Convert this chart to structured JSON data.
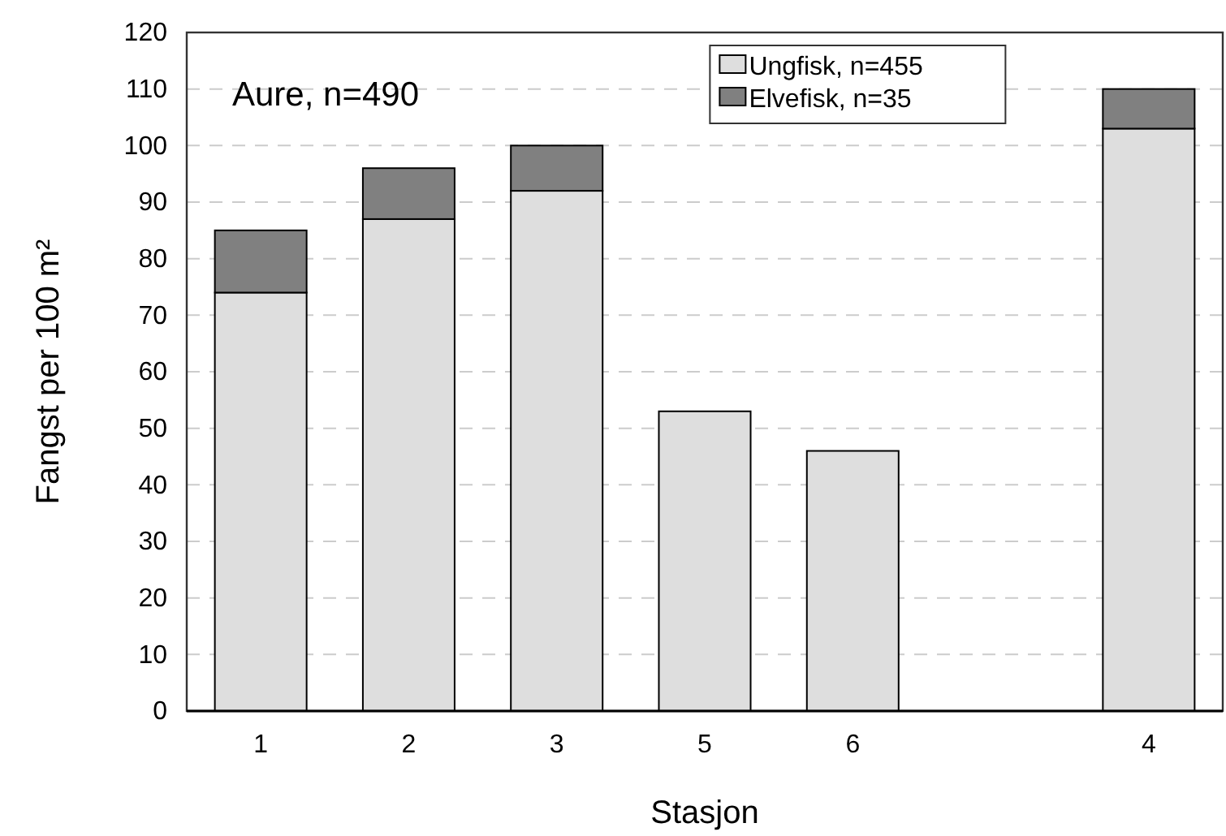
{
  "chart_data": {
    "type": "bar",
    "stacked": true,
    "categories": [
      "1",
      "2",
      "3",
      "5",
      "6",
      null,
      "4"
    ],
    "series": [
      {
        "name": "Ungfisk, n=455",
        "color": "#dedede",
        "values": [
          74,
          87,
          92,
          53,
          46,
          null,
          103
        ]
      },
      {
        "name": "Elvefisk, n=35",
        "color": "#808080",
        "values": [
          11,
          9,
          8,
          0,
          0,
          null,
          7
        ]
      }
    ],
    "xlabel": "Stasjon",
    "ylabel": "Fangst per 100 m²",
    "annotations": [
      "Aure, n=490"
    ],
    "ylim": [
      0,
      120
    ],
    "yticks": [
      0,
      10,
      20,
      30,
      40,
      50,
      60,
      70,
      80,
      90,
      100,
      110,
      120
    ],
    "grid": "y",
    "legend": "top"
  }
}
